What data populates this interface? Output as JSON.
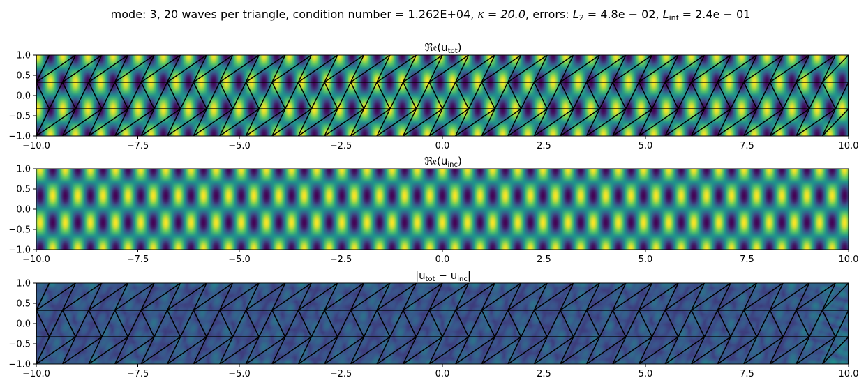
{
  "figure": {
    "suptitle": {
      "a": "mode: 3, 20 waves per triangle, condition number =  1.262E+04, ",
      "kappa": "κ = 20.0",
      "b": ", errors: ",
      "l2_sym": "L",
      "l2_sub": "2",
      "l2_val": " = 4.8e − 02, ",
      "linf_sym": "L",
      "linf_sub": "inf",
      "linf_val": " = 2.4e − 01"
    }
  },
  "colormap": "viridis",
  "colors": {
    "viridis": [
      "#440154",
      "#3b528b",
      "#21918c",
      "#5ec962",
      "#fde725"
    ],
    "mesh": "#000000",
    "axes_frame": "#000000"
  },
  "chart_data": [
    {
      "type": "heatmap",
      "title": {
        "fn": "ℜ𝔢(u",
        "sub": "tot",
        "close": ")"
      },
      "xlim": [
        -10,
        10
      ],
      "ylim": [
        -1,
        1
      ],
      "x_ticks": [
        -10,
        -7.5,
        -5,
        -2.5,
        0,
        2.5,
        5,
        7.5,
        10
      ],
      "x_tick_labels": [
        "−10.0",
        "−7.5",
        "−5.0",
        "−2.5",
        "0.0",
        "2.5",
        "5.0",
        "7.5",
        "10.0"
      ],
      "y_ticks": [
        1,
        0.5,
        0,
        -0.5,
        -1
      ],
      "y_tick_labels": [
        "1.0",
        "0.5",
        "0.0",
        "−0.5",
        "−1.0"
      ],
      "field": "real_total",
      "mesh_overlay": true
    },
    {
      "type": "heatmap",
      "title": {
        "fn": "ℜ𝔢(u",
        "sub": "inc",
        "close": ")"
      },
      "xlim": [
        -10,
        10
      ],
      "ylim": [
        -1,
        1
      ],
      "x_ticks": [
        -10,
        -7.5,
        -5,
        -2.5,
        0,
        2.5,
        5,
        7.5,
        10
      ],
      "x_tick_labels": [
        "−10.0",
        "−7.5",
        "−5.0",
        "−2.5",
        "0.0",
        "2.5",
        "5.0",
        "7.5",
        "10.0"
      ],
      "y_ticks": [
        1,
        0.5,
        0,
        -0.5,
        -1
      ],
      "y_tick_labels": [
        "1.0",
        "0.5",
        "0.0",
        "−0.5",
        "−1.0"
      ],
      "field": "real_incident",
      "mesh_overlay": false
    },
    {
      "type": "heatmap",
      "title": {
        "fn": "|u",
        "sub": "tot",
        "mid": " − u",
        "sub2": "inc",
        "close": "|"
      },
      "xlim": [
        -10,
        10
      ],
      "ylim": [
        -1,
        1
      ],
      "x_ticks": [
        -10,
        -7.5,
        -5,
        -2.5,
        0,
        2.5,
        5,
        7.5,
        10
      ],
      "x_tick_labels": [
        "−10.0",
        "−7.5",
        "−5.0",
        "−2.5",
        "0.0",
        "2.5",
        "5.0",
        "7.5",
        "10.0"
      ],
      "y_ticks": [
        1,
        0.5,
        0,
        -0.5,
        -1
      ],
      "y_tick_labels": [
        "1.0",
        "0.5",
        "0.0",
        "−0.5",
        "−1.0"
      ],
      "field": "abs_difference",
      "mesh_overlay": true
    }
  ]
}
